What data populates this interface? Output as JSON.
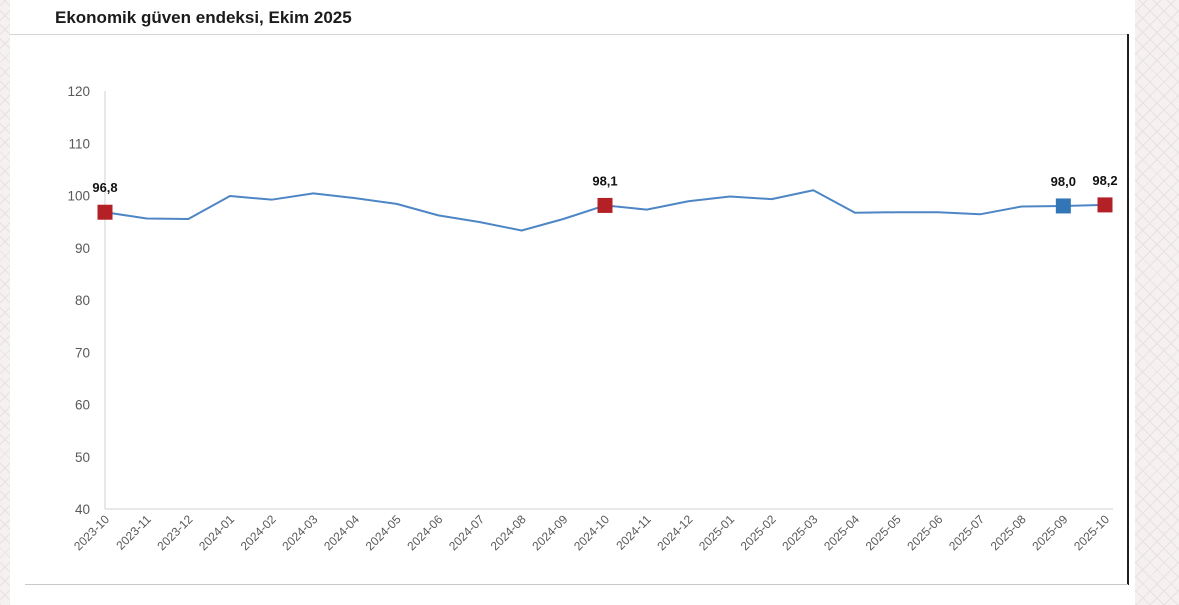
{
  "page": {
    "title": "Ekonomik güven endeksi, Ekim 2025"
  },
  "chart_data": {
    "type": "line",
    "title": "Ekonomik güven endeksi, Ekim 2025",
    "categories": [
      "2023-10",
      "2023-11",
      "2023-12",
      "2024-01",
      "2024-02",
      "2024-03",
      "2024-04",
      "2024-05",
      "2024-06",
      "2024-07",
      "2024-08",
      "2024-09",
      "2024-10",
      "2024-11",
      "2024-12",
      "2025-01",
      "2025-02",
      "2025-03",
      "2025-04",
      "2025-05",
      "2025-06",
      "2025-07",
      "2025-08",
      "2025-09",
      "2025-10"
    ],
    "values": [
      96.8,
      95.6,
      95.5,
      99.9,
      99.2,
      100.4,
      99.5,
      98.4,
      96.2,
      94.9,
      93.3,
      95.5,
      98.1,
      97.3,
      98.9,
      99.8,
      99.3,
      101.0,
      96.7,
      96.8,
      96.8,
      96.4,
      97.9,
      98.0,
      98.2
    ],
    "xlabel": "",
    "ylabel": "",
    "ylim": [
      40,
      120
    ],
    "yticks": [
      120,
      110,
      100,
      90,
      80,
      70,
      60,
      50,
      40
    ],
    "grid": false,
    "legend": "none",
    "line_color": "#4e86c5",
    "axis_color": "#d2d2d2",
    "tick_label_color": "#595959",
    "value_label_color": "#111111",
    "highlight_points": [
      {
        "index": 0,
        "category": "2023-10",
        "value": 96.8,
        "label": "96,8",
        "color": "#b32025"
      },
      {
        "index": 12,
        "category": "2024-10",
        "value": 98.1,
        "label": "98,1",
        "color": "#b32025"
      },
      {
        "index": 23,
        "category": "2025-09",
        "value": 98.0,
        "label": "98,0",
        "color": "#3376b7"
      },
      {
        "index": 24,
        "category": "2025-10",
        "value": 98.2,
        "label": "98,2",
        "color": "#b32025"
      }
    ]
  }
}
